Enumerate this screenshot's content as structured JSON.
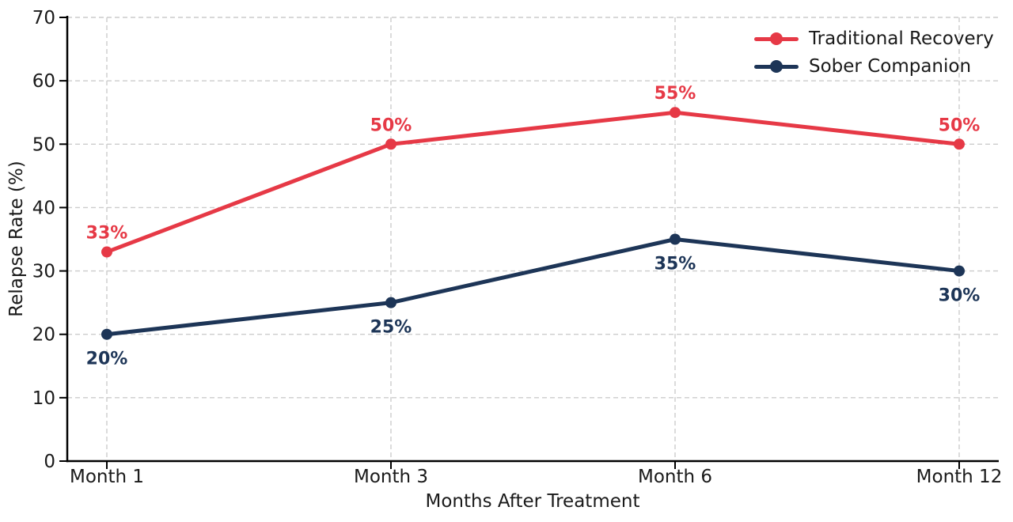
{
  "chart_data": {
    "type": "line",
    "categories": [
      "Month 1",
      "Month 3",
      "Month 6",
      "Month 12"
    ],
    "xlabel": "Months After Treatment",
    "ylabel": "Relapse Rate (%)",
    "ylim": [
      0,
      70
    ],
    "yticks": [
      0,
      10,
      20,
      30,
      40,
      50,
      60,
      70
    ],
    "grid": true,
    "grid_style": "dashed",
    "legend_position": "upper right",
    "series": [
      {
        "name": "Traditional Recovery",
        "color": "#e63946",
        "values": [
          33,
          50,
          55,
          50
        ],
        "point_labels": [
          "33%",
          "50%",
          "55%",
          "50%"
        ],
        "label_placement": "above"
      },
      {
        "name": "Sober Companion",
        "color": "#1d3557",
        "values": [
          20,
          25,
          35,
          30
        ],
        "point_labels": [
          "20%",
          "25%",
          "35%",
          "30%"
        ],
        "label_placement": "below"
      }
    ]
  },
  "colors": {
    "background": "#ffffff",
    "grid": "#cccccc",
    "axis": "#000000",
    "text": "#1a1a1a"
  }
}
